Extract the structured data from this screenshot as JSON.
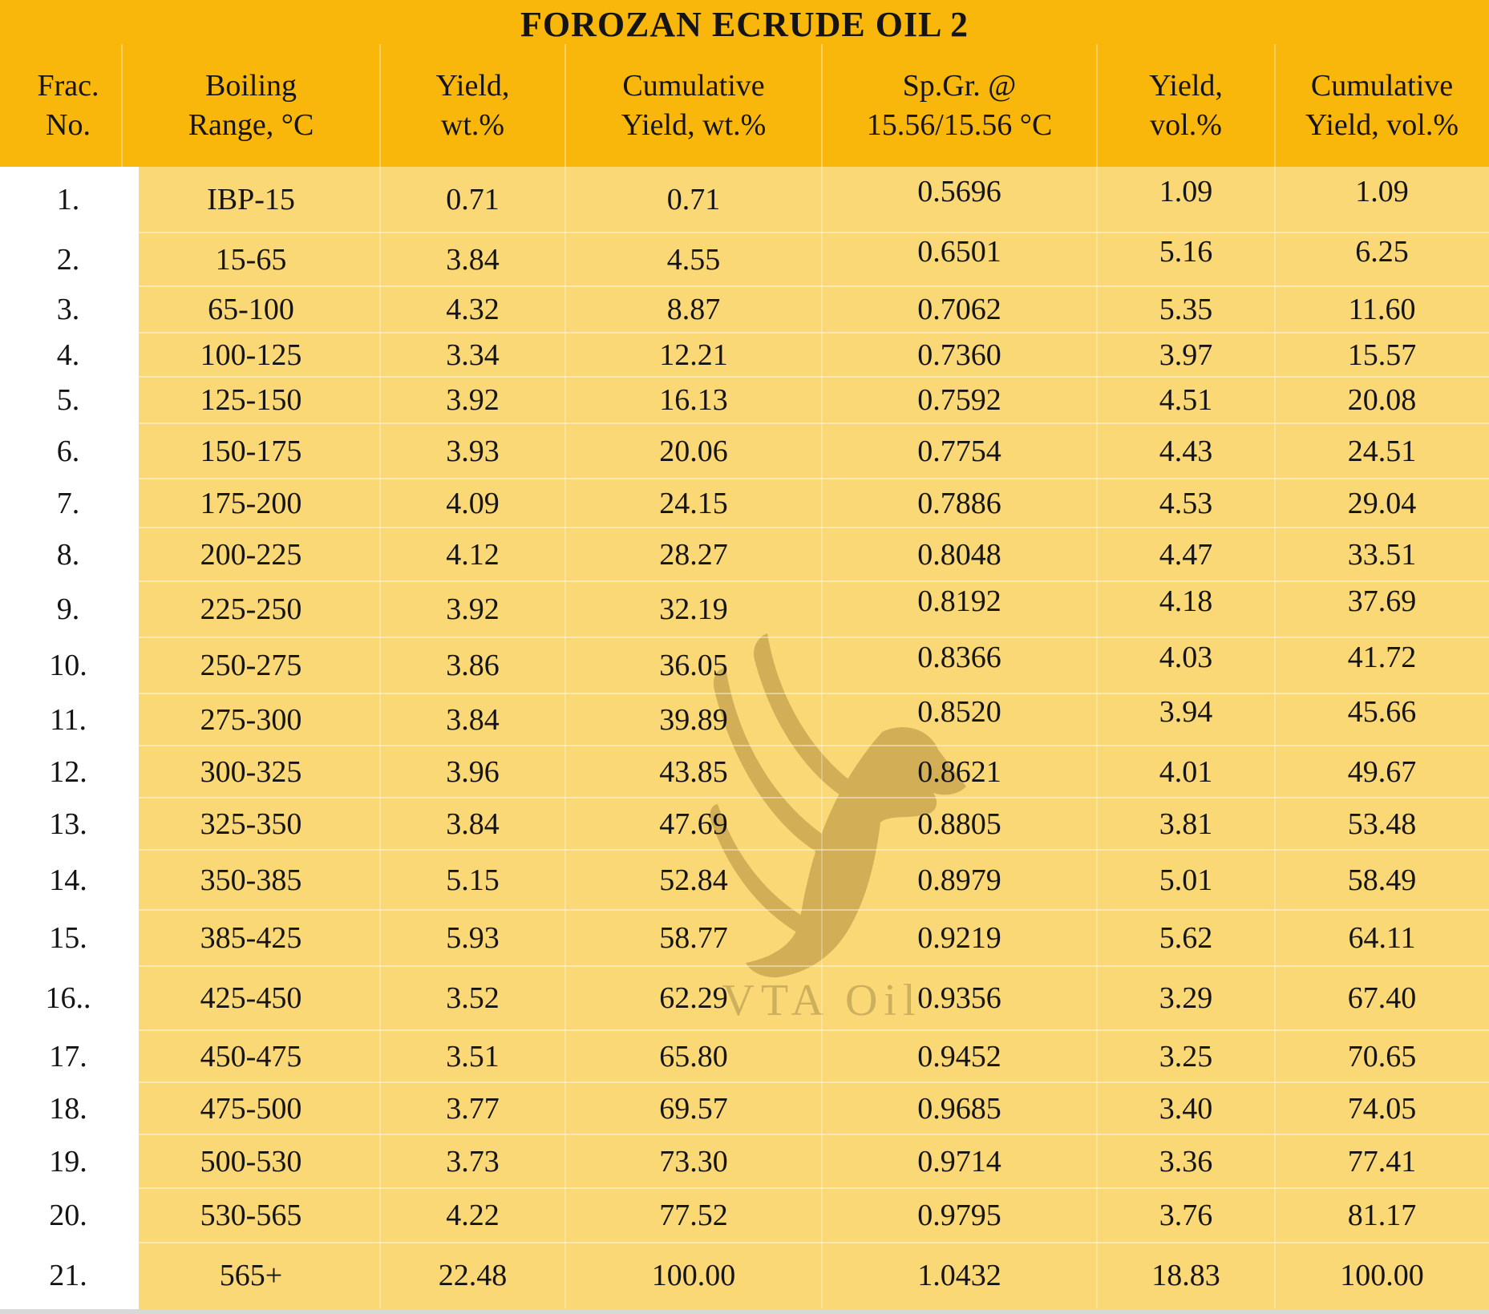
{
  "title": "FOROZAN ECRUDE OIL 2",
  "watermark": {
    "logo": "vta-bird-logo",
    "text": "VTA Oil"
  },
  "colors": {
    "header_bg": "#F8B70A",
    "body_bg": "#FBD876",
    "first_column_bg": "#FFFFFF",
    "watermark_fill": "#CBA952",
    "watermark_text": "#CDB05E",
    "bottom_strip": "#D8D8D8",
    "text": "#141414"
  },
  "table": {
    "columns": [
      {
        "id": "frac_no",
        "line1": "Frac.",
        "line2": "No."
      },
      {
        "id": "boiling_range",
        "line1": "Boiling",
        "line2": "Range, °C"
      },
      {
        "id": "yield_wt",
        "line1": "Yield,",
        "line2": "wt.%"
      },
      {
        "id": "cum_yield_wt",
        "line1": "Cumulative",
        "line2": "Yield, wt.%"
      },
      {
        "id": "sp_gr",
        "line1": "Sp.Gr. @",
        "line2": "15.56/15.56 °C"
      },
      {
        "id": "yield_vol",
        "line1": "Yield,",
        "line2": "vol.%"
      },
      {
        "id": "cum_yield_vol",
        "line1": "Cumulative",
        "line2": "Yield, vol.%"
      }
    ],
    "rows": [
      [
        "1.",
        "IBP-15",
        "0.71",
        "0.71",
        "0.5696",
        "1.09",
        "1.09"
      ],
      [
        "2.",
        "15-65",
        "3.84",
        "4.55",
        "0.6501",
        "5.16",
        "6.25"
      ],
      [
        "3.",
        "65-100",
        "4.32",
        "8.87",
        "0.7062",
        "5.35",
        "11.60"
      ],
      [
        "4.",
        "100-125",
        "3.34",
        "12.21",
        "0.7360",
        "3.97",
        "15.57"
      ],
      [
        "5.",
        "125-150",
        "3.92",
        "16.13",
        "0.7592",
        "4.51",
        "20.08"
      ],
      [
        "6.",
        "150-175",
        "3.93",
        "20.06",
        "0.7754",
        "4.43",
        "24.51"
      ],
      [
        "7.",
        "175-200",
        "4.09",
        "24.15",
        "0.7886",
        "4.53",
        "29.04"
      ],
      [
        "8.",
        "200-225",
        "4.12",
        "28.27",
        "0.8048",
        "4.47",
        "33.51"
      ],
      [
        "9.",
        "225-250",
        "3.92",
        "32.19",
        "0.8192",
        "4.18",
        "37.69"
      ],
      [
        "10.",
        "250-275",
        "3.86",
        "36.05",
        "0.8366",
        "4.03",
        "41.72"
      ],
      [
        "11.",
        "275-300",
        "3.84",
        "39.89",
        "0.8520",
        "3.94",
        "45.66"
      ],
      [
        "12.",
        "300-325",
        "3.96",
        "43.85",
        "0.8621",
        "4.01",
        "49.67"
      ],
      [
        "13.",
        "325-350",
        "3.84",
        "47.69",
        "0.8805",
        "3.81",
        "53.48"
      ],
      [
        "14.",
        "350-385",
        "5.15",
        "52.84",
        "0.8979",
        "5.01",
        "58.49"
      ],
      [
        "15.",
        "385-425",
        "5.93",
        "58.77",
        "0.9219",
        "5.62",
        "64.11"
      ],
      [
        "16..",
        "425-450",
        "3.52",
        "62.29",
        "0.9356",
        "3.29",
        "67.40"
      ],
      [
        "17.",
        "450-475",
        "3.51",
        "65.80",
        "0.9452",
        "3.25",
        "70.65"
      ],
      [
        "18.",
        "475-500",
        "3.77",
        "69.57",
        "0.9685",
        "3.40",
        "74.05"
      ],
      [
        "19.",
        "500-530",
        "3.73",
        "73.30",
        "0.9714",
        "3.36",
        "77.41"
      ],
      [
        "20.",
        "530-565",
        "4.22",
        "77.52",
        "0.9795",
        "3.76",
        "81.17"
      ],
      [
        "21.",
        "565+",
        "22.48",
        "100.00",
        "1.0432",
        "18.83",
        "100.00"
      ]
    ]
  }
}
